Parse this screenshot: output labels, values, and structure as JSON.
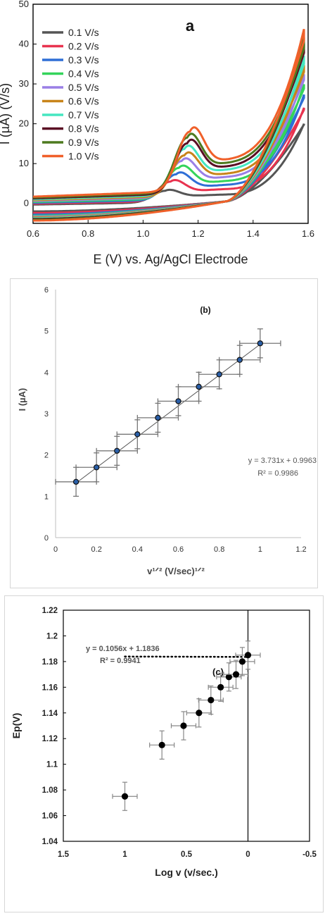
{
  "chart_data": [
    {
      "type": "line",
      "title": "a",
      "xlabel": "E (V) vs. Ag/AgCl Electrode",
      "ylabel": "I (µA) (V/s)",
      "xlim": [
        0.6,
        1.6
      ],
      "ylim": [
        -5,
        50
      ],
      "xticks": [
        "0.6",
        "0.8",
        "1.0",
        "1.2",
        "1.4",
        "1.6"
      ],
      "yticks": [
        "0",
        "10",
        "20",
        "30",
        "40",
        "50"
      ],
      "legend_position": "top-left",
      "series": [
        {
          "name": "0.1 V/s",
          "color": "#555555",
          "peak_potential": 1.08,
          "peak_current": 3.2,
          "max_current": 20.8,
          "min_current": -2.0
        },
        {
          "name": "0.2 V/s",
          "color": "#e8334f",
          "peak_potential": 1.1,
          "peak_current": 5.2,
          "max_current": 24.5,
          "min_current": -2.4
        },
        {
          "name": "0.3 V/s",
          "color": "#2f6fd6",
          "peak_potential": 1.12,
          "peak_current": 6.7,
          "max_current": 27.5,
          "min_current": -2.8
        },
        {
          "name": "0.4 V/s",
          "color": "#34d45a",
          "peak_potential": 1.13,
          "peak_current": 8.0,
          "max_current": 29.8,
          "min_current": -3.1
        },
        {
          "name": "0.5 V/s",
          "color": "#9a7fe6",
          "peak_potential": 1.14,
          "peak_current": 9.4,
          "max_current": 32.0,
          "min_current": -3.3
        },
        {
          "name": "0.6 V/s",
          "color": "#c8841a",
          "peak_potential": 1.15,
          "peak_current": 10.5,
          "max_current": 34.0,
          "min_current": -3.5
        },
        {
          "name": "0.7 V/s",
          "color": "#45e6c0",
          "peak_potential": 1.15,
          "peak_current": 11.8,
          "max_current": 36.0,
          "min_current": -3.7
        },
        {
          "name": "0.8 V/s",
          "color": "#5a0f24",
          "peak_potential": 1.16,
          "peak_current": 12.9,
          "max_current": 38.8,
          "min_current": -3.9
        },
        {
          "name": "0.9 V/s",
          "color": "#4d7a1f",
          "peak_potential": 1.16,
          "peak_current": 14.0,
          "max_current": 40.0,
          "min_current": -4.1
        },
        {
          "name": "1.0 V/s",
          "color": "#f0602a",
          "peak_potential": 1.17,
          "peak_current": 15.2,
          "max_current": 41.8,
          "min_current": -4.3
        }
      ]
    },
    {
      "type": "scatter",
      "title": "(b)",
      "xlabel": "v¹ᐟ² (V/sec)¹ᐟ²",
      "ylabel": "I (µA)",
      "xlim": [
        0,
        1.2
      ],
      "ylim": [
        0,
        6
      ],
      "xticks": [
        "0",
        "0.2",
        "0.4",
        "0.6",
        "0.8",
        "1",
        "1.2"
      ],
      "yticks": [
        "0",
        "1",
        "2",
        "3",
        "4",
        "5",
        "6"
      ],
      "equation": "y = 3.731x + 0.9963",
      "r2": "R² = 0.9986",
      "x": [
        0.1,
        0.2,
        0.3,
        0.4,
        0.5,
        0.6,
        0.7,
        0.8,
        0.9,
        1.0
      ],
      "y": [
        1.35,
        1.7,
        2.1,
        2.5,
        2.9,
        3.3,
        3.65,
        3.95,
        4.3,
        4.7
      ],
      "x_error": 0.1,
      "y_error": 0.35,
      "fit": {
        "slope": 3.731,
        "intercept": 0.9963
      }
    },
    {
      "type": "scatter",
      "title": "(c)",
      "xlabel": "Log v (v/sec.)",
      "ylabel": "Ep(V)",
      "xlim": [
        1.5,
        -0.5
      ],
      "ylim": [
        1.04,
        1.22
      ],
      "xticks": [
        "1.5",
        "1",
        "0.5",
        "0",
        "-0.5"
      ],
      "yticks": [
        "1.04",
        "1.06",
        "1.08",
        "1.1",
        "1.12",
        "1.14",
        "1.16",
        "1.18",
        "1.2",
        "1.22"
      ],
      "equation": "y = 0.1056x + 1.1836",
      "r2": "R² = 0.9941",
      "x": [
        1.0,
        0.699,
        0.523,
        0.398,
        0.301,
        0.222,
        0.155,
        0.097,
        0.046,
        0.0
      ],
      "y": [
        1.075,
        1.115,
        1.13,
        1.14,
        1.15,
        1.16,
        1.168,
        1.17,
        1.18,
        1.185
      ],
      "x_error": 0.1,
      "y_error": 0.011
    }
  ]
}
